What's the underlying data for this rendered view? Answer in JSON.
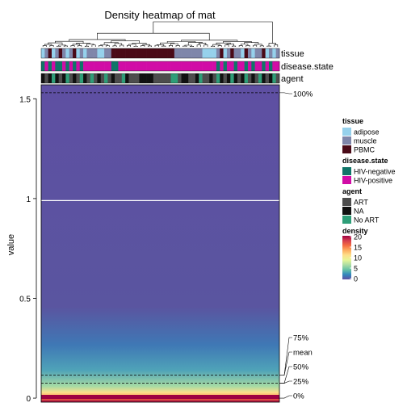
{
  "chart_data": {
    "type": "heatmap",
    "title": "Density heatmap of mat",
    "ylabel": "value",
    "ylim": [
      -0.02,
      1.57
    ],
    "y_ticks": [
      {
        "value": 0,
        "label": "0"
      },
      {
        "value": 0.5,
        "label": "0.5"
      },
      {
        "value": 1,
        "label": "1"
      },
      {
        "value": 1.5,
        "label": "1.5"
      }
    ],
    "quantiles": [
      {
        "label": "100%",
        "value": 1.53
      },
      {
        "label": "75%",
        "value": 0.115
      },
      {
        "label": "mean",
        "value": 0.115
      },
      {
        "label": "50%",
        "value": 0.075
      },
      {
        "label": "25%",
        "value": 0.075
      },
      {
        "label": "0%",
        "value": 0.0
      }
    ],
    "mean_line_value": 0.99,
    "color_scale": {
      "name": "density",
      "ticks": [
        "20",
        "15",
        "10",
        "5",
        "0"
      ],
      "range": [
        0,
        20
      ],
      "colors": [
        "#5e4fa2",
        "#3288bd",
        "#66c2a5",
        "#abdda4",
        "#e6f598",
        "#fee08b",
        "#fdae61",
        "#f46d43",
        "#d53e4f",
        "#9e0142"
      ]
    },
    "n_columns": 68,
    "annotations": [
      {
        "name": "tissue",
        "levels": [
          {
            "label": "adipose",
            "color": "#96d1ec"
          },
          {
            "label": "muscle",
            "color": "#7f86aa"
          },
          {
            "label": "PBMC",
            "color": "#4a0a17"
          }
        ],
        "sequence": [
          "adipose",
          "muscle",
          "PBMC",
          "adipose",
          "muscle",
          "PBMC",
          "muscle",
          "adipose",
          "muscle",
          "PBMC",
          "adipose",
          "muscle",
          "adipose",
          "muscle",
          "muscle",
          "muscle",
          "adipose",
          "adipose",
          "muscle",
          "muscle",
          "PBMC",
          "PBMC",
          "PBMC",
          "PBMC",
          "PBMC",
          "PBMC",
          "PBMC",
          "PBMC",
          "PBMC",
          "PBMC",
          "PBMC",
          "PBMC",
          "PBMC",
          "PBMC",
          "PBMC",
          "PBMC",
          "PBMC",
          "PBMC",
          "muscle",
          "muscle",
          "muscle",
          "muscle",
          "muscle",
          "muscle",
          "muscle",
          "muscle",
          "adipose",
          "adipose",
          "adipose",
          "adipose",
          "muscle",
          "PBMC",
          "adipose",
          "muscle",
          "PBMC",
          "muscle",
          "muscle",
          "adipose",
          "PBMC",
          "muscle",
          "adipose",
          "muscle",
          "muscle",
          "PBMC",
          "adipose",
          "muscle",
          "adipose",
          "muscle"
        ]
      },
      {
        "name": "disease.state",
        "levels": [
          {
            "label": "HIV-negative",
            "color": "#0f7568"
          },
          {
            "label": "HIV-positive",
            "color": "#d10ca6"
          }
        ],
        "sequence": [
          "HIV-negative",
          "HIV-positive",
          "HIV-negative",
          "HIV-positive",
          "HIV-negative",
          "HIV-negative",
          "HIV-positive",
          "HIV-negative",
          "HIV-positive",
          "HIV-negative",
          "HIV-positive",
          "HIV-negative",
          "HIV-positive",
          "HIV-positive",
          "HIV-positive",
          "HIV-positive",
          "HIV-positive",
          "HIV-positive",
          "HIV-positive",
          "HIV-positive",
          "HIV-negative",
          "HIV-negative",
          "HIV-positive",
          "HIV-positive",
          "HIV-positive",
          "HIV-positive",
          "HIV-positive",
          "HIV-positive",
          "HIV-positive",
          "HIV-positive",
          "HIV-positive",
          "HIV-positive",
          "HIV-positive",
          "HIV-positive",
          "HIV-positive",
          "HIV-positive",
          "HIV-positive",
          "HIV-positive",
          "HIV-positive",
          "HIV-positive",
          "HIV-positive",
          "HIV-positive",
          "HIV-positive",
          "HIV-positive",
          "HIV-positive",
          "HIV-positive",
          "HIV-positive",
          "HIV-positive",
          "HIV-positive",
          "HIV-positive",
          "HIV-negative",
          "HIV-positive",
          "HIV-negative",
          "HIV-positive",
          "HIV-positive",
          "HIV-negative",
          "HIV-positive",
          "HIV-positive",
          "HIV-negative",
          "HIV-positive",
          "HIV-negative",
          "HIV-positive",
          "HIV-positive",
          "HIV-negative",
          "HIV-positive",
          "HIV-negative",
          "HIV-positive",
          "HIV-positive"
        ]
      },
      {
        "name": "agent",
        "levels": [
          {
            "label": "ART",
            "color": "#4d4d4d"
          },
          {
            "label": "NA",
            "color": "#111111"
          },
          {
            "label": "No ART",
            "color": "#2e9e78"
          }
        ],
        "sequence": [
          "NA",
          "ART",
          "NA",
          "No ART",
          "NA",
          "ART",
          "NA",
          "No ART",
          "ART",
          "NA",
          "ART",
          "No ART",
          "NA",
          "ART",
          "No ART",
          "ART",
          "NA",
          "ART",
          "No ART",
          "ART",
          "NA",
          "ART",
          "ART",
          "No ART",
          "NA",
          "ART",
          "ART",
          "ART",
          "NA",
          "NA",
          "NA",
          "NA",
          "ART",
          "ART",
          "ART",
          "ART",
          "ART",
          "No ART",
          "No ART",
          "ART",
          "NA",
          "NA",
          "ART",
          "ART",
          "NA",
          "No ART",
          "ART",
          "ART",
          "NA",
          "ART",
          "No ART",
          "NA",
          "ART",
          "NA",
          "No ART",
          "NA",
          "ART",
          "NA",
          "No ART",
          "ART",
          "NA",
          "ART",
          "No ART",
          "NA",
          "ART",
          "NA",
          "No ART",
          "ART"
        ]
      }
    ]
  }
}
